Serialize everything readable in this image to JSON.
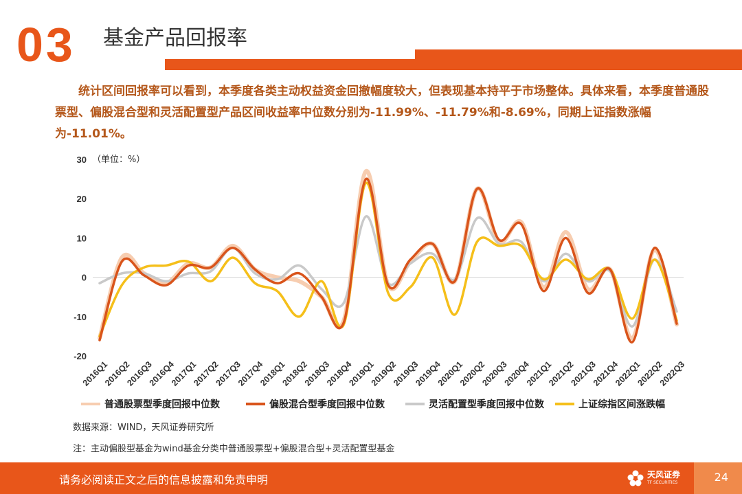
{
  "header": {
    "section_number": "03",
    "title": "基金产品回报率"
  },
  "intro": {
    "text": "统计区间回报率可以看到，本季度各类主动权益资金回撤幅度较大，但表现基本持平于市场整体。具体来看，本季度普通股票型、偏股混合型和灵活配置型产品区间收益率中位数分别为-11.99%、-11.79%和-8.69%，同期上证指数涨幅为-11.01%。"
  },
  "chart_data": {
    "type": "line",
    "unit_label": "（单位：%）",
    "ylim": [
      -20,
      30
    ],
    "yticks": [
      "30",
      "20",
      "10",
      "0",
      "-10",
      "-20"
    ],
    "categories": [
      "2016Q1",
      "2016Q2",
      "2016Q3",
      "2016Q4",
      "2017Q1",
      "2017Q2",
      "2017Q3",
      "2017Q4",
      "2018Q1",
      "2018Q2",
      "2018Q3",
      "2018Q4",
      "2019Q1",
      "2019Q2",
      "2019Q3",
      "2019Q4",
      "2020Q1",
      "2020Q2",
      "2020Q3",
      "2020Q4",
      "2021Q1",
      "2021Q2",
      "2021Q3",
      "2021Q4",
      "2022Q1",
      "2022Q2",
      "2022Q3"
    ],
    "series": [
      {
        "name": "普通股票型季度回报中位数",
        "color": "#f7cdb0",
        "values": [
          -15.5,
          5.0,
          1.0,
          -1.5,
          3.5,
          2.5,
          8.0,
          2.0,
          0.0,
          -1.0,
          -5.0,
          -11.0,
          27.0,
          -2.0,
          4.0,
          8.5,
          -1.0,
          22.5,
          9.0,
          14.0,
          -2.5,
          11.5,
          -3.0,
          2.0,
          -15.5,
          7.0,
          -12.0
        ]
      },
      {
        "name": "偏股混合型季度回报中位数",
        "color": "#d9541b",
        "values": [
          -16.0,
          4.0,
          0.5,
          -2.0,
          3.0,
          2.5,
          7.5,
          2.0,
          -1.5,
          1.0,
          -5.0,
          -11.5,
          25.0,
          -2.0,
          4.5,
          8.5,
          -1.0,
          22.5,
          9.5,
          13.5,
          -3.5,
          10.0,
          -4.0,
          2.0,
          -16.5,
          7.5,
          -11.8
        ]
      },
      {
        "name": "灵活配置型季度回报中位数",
        "color": "#c9c9c9",
        "values": [
          -1.5,
          1.0,
          1.0,
          -1.0,
          1.0,
          1.5,
          7.5,
          1.0,
          -0.5,
          3.0,
          -3.0,
          -6.5,
          15.5,
          -1.5,
          3.5,
          6.0,
          -0.5,
          15.0,
          8.5,
          9.0,
          -1.0,
          6.0,
          -1.0,
          1.5,
          -12.5,
          4.5,
          -8.7
        ]
      },
      {
        "name": "上证综指区间涨跌幅",
        "color": "#f5bf1a",
        "values": [
          -15.0,
          -2.0,
          2.5,
          3.0,
          4.0,
          -1.0,
          5.0,
          -1.5,
          -3.5,
          -10.0,
          -1.0,
          -12.0,
          24.0,
          -4.0,
          -2.5,
          5.0,
          -9.5,
          9.0,
          8.0,
          8.0,
          -0.5,
          4.5,
          -0.5,
          2.0,
          -10.5,
          4.5,
          -11.0
        ]
      }
    ],
    "legend_position": "bottom"
  },
  "source": "数据来源：WIND，天风证券研究所",
  "note": "注：主动偏股型基金为wind基金分类中普通股票型+偏股混合型+灵活配置型基金",
  "footer": {
    "disclaimer": "请务必阅读正文之后的信息披露和免责申明",
    "logo_cn": "天风证券",
    "logo_en": "TF SECURITIES",
    "page_number": "24",
    "brand_color": "#e8561a"
  }
}
